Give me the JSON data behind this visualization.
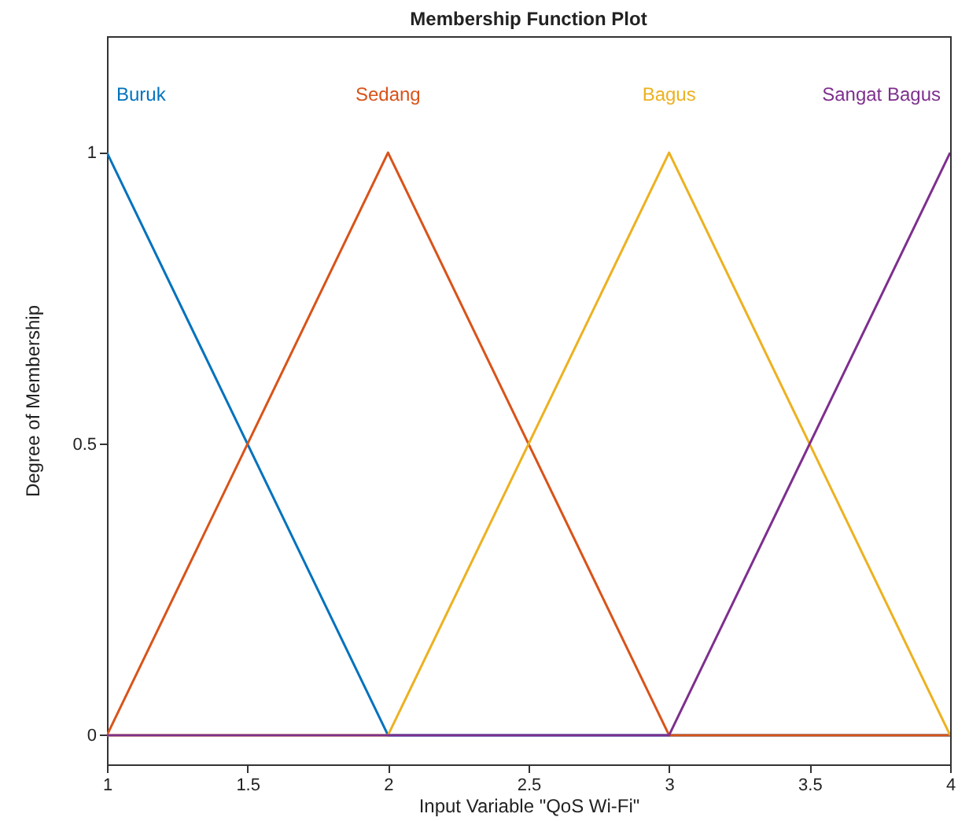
{
  "chart_data": {
    "type": "line",
    "title": "Membership Function Plot",
    "xlabel": "Input Variable \"QoS Wi-Fi\"",
    "ylabel": "Degree of Membership",
    "xlim": [
      1,
      4
    ],
    "xticks": [
      1,
      1.5,
      2,
      2.5,
      3,
      3.5,
      4
    ],
    "ylim": [
      -0.05,
      1.2
    ],
    "yticks": [
      0,
      0.5,
      1
    ],
    "grid": false,
    "legend": false,
    "series": [
      {
        "name": "Buruk",
        "color": "#0072bd",
        "x": [
          1,
          2,
          4
        ],
        "values": [
          1,
          0,
          0
        ]
      },
      {
        "name": "Sedang",
        "color": "#d95319",
        "x": [
          1,
          2,
          3,
          4
        ],
        "values": [
          0,
          1,
          0,
          0
        ]
      },
      {
        "name": "Bagus",
        "color": "#edb120",
        "x": [
          1,
          2,
          3,
          4
        ],
        "values": [
          0,
          0,
          1,
          0
        ]
      },
      {
        "name": "Sangat Bagus",
        "color": "#7e2f8e",
        "x": [
          1,
          3,
          4
        ],
        "values": [
          0,
          0,
          1
        ]
      }
    ]
  }
}
